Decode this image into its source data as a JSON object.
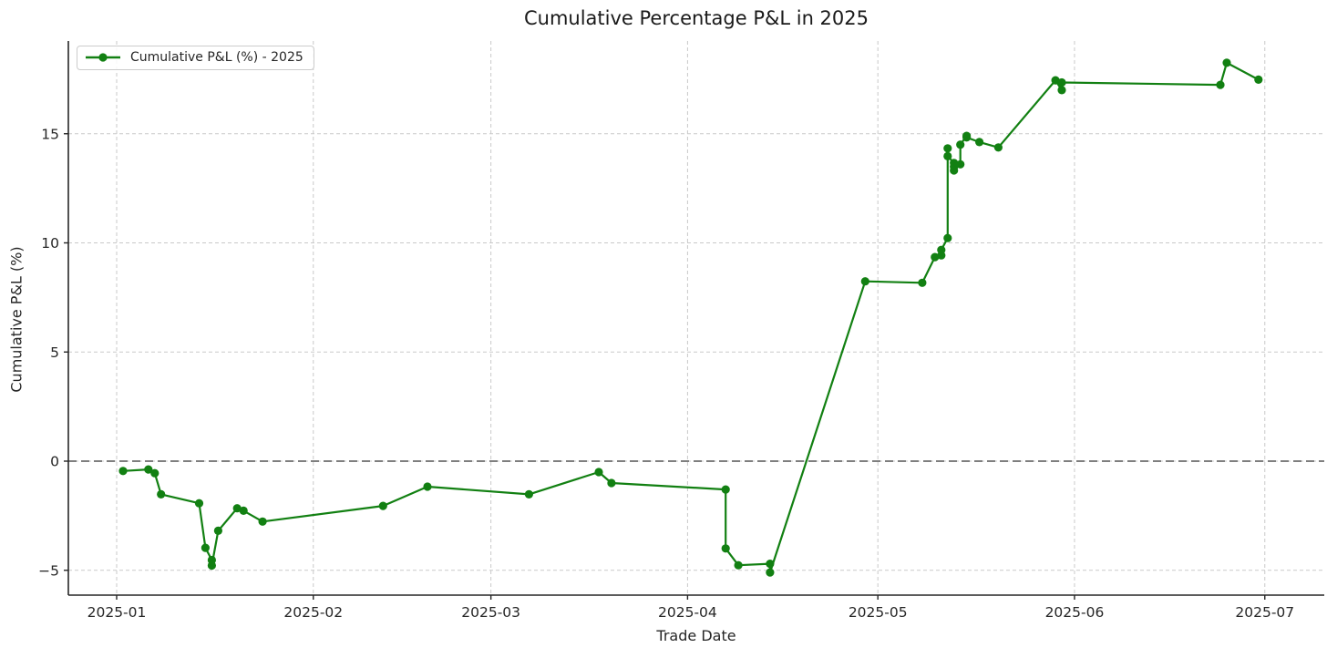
{
  "chart_data": {
    "type": "line",
    "title": "Cumulative Percentage P&L in 2025",
    "xlabel": "Trade Date",
    "ylabel": "Cumulative P&L (%)",
    "legend": {
      "label": "Cumulative P&L (%) - 2025",
      "position": "upper left"
    },
    "grid": {
      "visible": true,
      "style": "dashed"
    },
    "zero_line": {
      "value": 0,
      "style": "dashed",
      "color": "#7f7f7f"
    },
    "line_color": "#128012",
    "marker": "circle",
    "x_tick_labels": [
      "2025-01",
      "2025-02",
      "2025-03",
      "2025-04",
      "2025-05",
      "2025-06",
      "2025-07"
    ],
    "y_ticks": [
      -5,
      0,
      5,
      10,
      15
    ],
    "xlim_days_from_jan1": [
      -7.6,
      190.4
    ],
    "ylim": [
      -6.1,
      19.3
    ],
    "series": [
      {
        "name": "Cumulative P&L (%) - 2025",
        "points": [
          [
            "2025-01-02",
            -0.45
          ],
          [
            "2025-01-06",
            -0.38
          ],
          [
            "2025-01-07",
            -0.55
          ],
          [
            "2025-01-08",
            -1.52
          ],
          [
            "2025-01-14",
            -1.93
          ],
          [
            "2025-01-15",
            -3.97
          ],
          [
            "2025-01-16",
            -4.53
          ],
          [
            "2025-01-16",
            -4.78
          ],
          [
            "2025-01-17",
            -3.19
          ],
          [
            "2025-01-20",
            -2.16
          ],
          [
            "2025-01-21",
            -2.27
          ],
          [
            "2025-01-24",
            -2.77
          ],
          [
            "2025-02-12",
            -2.05
          ],
          [
            "2025-02-19",
            -1.17
          ],
          [
            "2025-03-07",
            -1.52
          ],
          [
            "2025-03-18",
            -0.5
          ],
          [
            "2025-03-20",
            -1.0
          ],
          [
            "2025-04-07",
            -1.3
          ],
          [
            "2025-04-07",
            -4.0
          ],
          [
            "2025-04-09",
            -4.77
          ],
          [
            "2025-04-14",
            -4.7
          ],
          [
            "2025-04-14",
            -5.1
          ],
          [
            "2025-04-29",
            8.24
          ],
          [
            "2025-05-08",
            8.17
          ],
          [
            "2025-05-10",
            9.35
          ],
          [
            "2025-05-11",
            9.43
          ],
          [
            "2025-05-11",
            9.68
          ],
          [
            "2025-05-12",
            10.22
          ],
          [
            "2025-05-12",
            14.33
          ],
          [
            "2025-05-12",
            13.97
          ],
          [
            "2025-05-13",
            13.66
          ],
          [
            "2025-05-13",
            13.49
          ],
          [
            "2025-05-13",
            13.32
          ],
          [
            "2025-05-14",
            13.6
          ],
          [
            "2025-05-14",
            14.5
          ],
          [
            "2025-05-15",
            14.9
          ],
          [
            "2025-05-15",
            14.83
          ],
          [
            "2025-05-17",
            14.62
          ],
          [
            "2025-05-20",
            14.37
          ],
          [
            "2025-05-29",
            17.45
          ],
          [
            "2025-05-30",
            17.0
          ],
          [
            "2025-05-30",
            17.35
          ],
          [
            "2025-06-24",
            17.24
          ],
          [
            "2025-06-25",
            18.25
          ],
          [
            "2025-06-30",
            17.48
          ]
        ]
      }
    ]
  }
}
